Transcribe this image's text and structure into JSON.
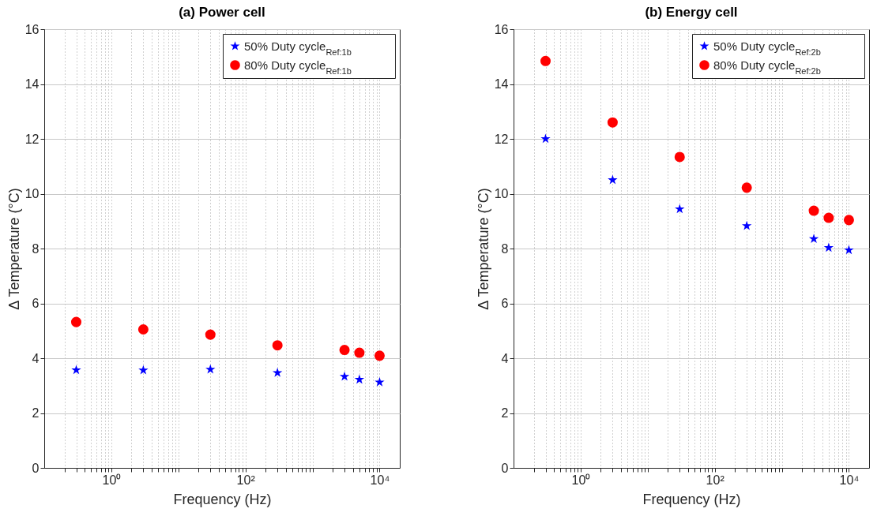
{
  "chart_data": [
    {
      "type": "scatter",
      "title": "(a) Power cell",
      "xlabel": "Frequency (Hz)",
      "ylabel": "Δ Temperature (°C)",
      "log": "x",
      "x": [
        0.3,
        3,
        30,
        300,
        3000,
        5000,
        10000
      ],
      "series": [
        {
          "name": "50% Duty cycle$_{Ref:1b}$",
          "color": "#0000ff",
          "marker": "star",
          "values": [
            3.57,
            3.56,
            3.59,
            3.47,
            3.33,
            3.22,
            3.12
          ]
        },
        {
          "name": "80% Duty cycle$_{Ref:1b}$",
          "color": "#ff0000",
          "marker": "circle",
          "values": [
            5.32,
            5.05,
            4.86,
            4.47,
            4.3,
            4.2,
            4.09
          ]
        }
      ],
      "xlim": [
        0.1,
        20000
      ],
      "xticks": [
        {
          "value": 0.2,
          "label": null
        },
        {
          "value": 0.3,
          "label": null
        },
        {
          "value": 0.4,
          "label": null
        },
        {
          "value": 0.5,
          "label": null
        },
        {
          "value": 0.6,
          "label": null
        },
        {
          "value": 0.7,
          "label": null
        },
        {
          "value": 0.8,
          "label": null
        },
        {
          "value": 0.9,
          "label": null
        },
        {
          "value": 1,
          "label": "10⁰"
        },
        {
          "value": 2,
          "label": null
        },
        {
          "value": 3,
          "label": null
        },
        {
          "value": 4,
          "label": null
        },
        {
          "value": 5,
          "label": null
        },
        {
          "value": 6,
          "label": null
        },
        {
          "value": 7,
          "label": null
        },
        {
          "value": 8,
          "label": null
        },
        {
          "value": 9,
          "label": null
        },
        {
          "value": 10,
          "label": null
        },
        {
          "value": 20,
          "label": null
        },
        {
          "value": 30,
          "label": null
        },
        {
          "value": 40,
          "label": null
        },
        {
          "value": 50,
          "label": null
        },
        {
          "value": 60,
          "label": null
        },
        {
          "value": 70,
          "label": null
        },
        {
          "value": 80,
          "label": null
        },
        {
          "value": 90,
          "label": null
        },
        {
          "value": 100,
          "label": "10²"
        },
        {
          "value": 200,
          "label": null
        },
        {
          "value": 300,
          "label": null
        },
        {
          "value": 400,
          "label": null
        },
        {
          "value": 500,
          "label": null
        },
        {
          "value": 600,
          "label": null
        },
        {
          "value": 700,
          "label": null
        },
        {
          "value": 800,
          "label": null
        },
        {
          "value": 900,
          "label": null
        },
        {
          "value": 1000,
          "label": null
        },
        {
          "value": 2000,
          "label": null
        },
        {
          "value": 3000,
          "label": null
        },
        {
          "value": 4000,
          "label": null
        },
        {
          "value": 5000,
          "label": null
        },
        {
          "value": 6000,
          "label": null
        },
        {
          "value": 7000,
          "label": null
        },
        {
          "value": 8000,
          "label": null
        },
        {
          "value": 9000,
          "label": null
        },
        {
          "value": 10000,
          "label": "10⁴"
        }
      ],
      "ylim": [
        0,
        16
      ],
      "yticks": [
        0,
        2,
        4,
        6,
        8,
        10,
        12,
        14,
        16
      ],
      "grid": true,
      "legend": "top right"
    },
    {
      "type": "scatter",
      "title": "(b) Energy cell",
      "xlabel": "Frequency (Hz)",
      "ylabel": "Δ Temperature (°C)",
      "log": "x",
      "x": [
        0.3,
        3,
        30,
        300,
        3000,
        5000,
        10000
      ],
      "series": [
        {
          "name": "50% Duty cycle$_{Ref:2b}$",
          "color": "#0000ff",
          "marker": "star",
          "values": [
            12.0,
            10.5,
            9.44,
            8.83,
            8.35,
            8.03,
            7.94
          ]
        },
        {
          "name": "80% Duty cycle$_{Ref:2b}$",
          "color": "#ff0000",
          "marker": "circle",
          "values": [
            14.84,
            12.6,
            11.34,
            10.22,
            9.38,
            9.12,
            9.04
          ]
        }
      ],
      "xlim": [
        0.1,
        20000
      ],
      "xticks": [
        {
          "value": 0.2,
          "label": null
        },
        {
          "value": 0.3,
          "label": null
        },
        {
          "value": 0.4,
          "label": null
        },
        {
          "value": 0.5,
          "label": null
        },
        {
          "value": 0.6,
          "label": null
        },
        {
          "value": 0.7,
          "label": null
        },
        {
          "value": 0.8,
          "label": null
        },
        {
          "value": 0.9,
          "label": null
        },
        {
          "value": 1,
          "label": "10⁰"
        },
        {
          "value": 2,
          "label": null
        },
        {
          "value": 3,
          "label": null
        },
        {
          "value": 4,
          "label": null
        },
        {
          "value": 5,
          "label": null
        },
        {
          "value": 6,
          "label": null
        },
        {
          "value": 7,
          "label": null
        },
        {
          "value": 8,
          "label": null
        },
        {
          "value": 9,
          "label": null
        },
        {
          "value": 10,
          "label": null
        },
        {
          "value": 20,
          "label": null
        },
        {
          "value": 30,
          "label": null
        },
        {
          "value": 40,
          "label": null
        },
        {
          "value": 50,
          "label": null
        },
        {
          "value": 60,
          "label": null
        },
        {
          "value": 70,
          "label": null
        },
        {
          "value": 80,
          "label": null
        },
        {
          "value": 90,
          "label": null
        },
        {
          "value": 100,
          "label": "10²"
        },
        {
          "value": 200,
          "label": null
        },
        {
          "value": 300,
          "label": null
        },
        {
          "value": 400,
          "label": null
        },
        {
          "value": 500,
          "label": null
        },
        {
          "value": 600,
          "label": null
        },
        {
          "value": 700,
          "label": null
        },
        {
          "value": 800,
          "label": null
        },
        {
          "value": 900,
          "label": null
        },
        {
          "value": 1000,
          "label": null
        },
        {
          "value": 2000,
          "label": null
        },
        {
          "value": 3000,
          "label": null
        },
        {
          "value": 4000,
          "label": null
        },
        {
          "value": 5000,
          "label": null
        },
        {
          "value": 6000,
          "label": null
        },
        {
          "value": 7000,
          "label": null
        },
        {
          "value": 8000,
          "label": null
        },
        {
          "value": 9000,
          "label": null
        },
        {
          "value": 10000,
          "label": "10⁴"
        }
      ],
      "ylim": [
        0,
        16
      ],
      "yticks": [
        0,
        2,
        4,
        6,
        8,
        10,
        12,
        14,
        16
      ],
      "grid": true,
      "legend": "top right"
    }
  ]
}
